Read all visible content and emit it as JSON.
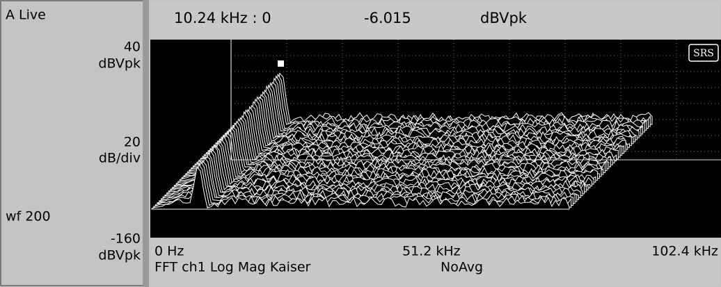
{
  "left_panel": {
    "trace": "A Live",
    "top_value": "40",
    "top_unit": "dBVpk",
    "scale_value": "20",
    "scale_unit": "dB/div",
    "waterfall": "wf 200",
    "bottom_value": "-160",
    "bottom_unit": "dBVpk"
  },
  "readout": {
    "frequency": "10.24 kHz : 0",
    "value": "-6.015",
    "unit": "dBVpk"
  },
  "x_axis": {
    "start": "0 Hz",
    "center": "51.2 kHz",
    "end": "102.4 kHz"
  },
  "measurement": {
    "description": "FFT ch1 Log Mag Kaiser",
    "averaging": "NoAvg"
  },
  "logo": "SRS"
}
